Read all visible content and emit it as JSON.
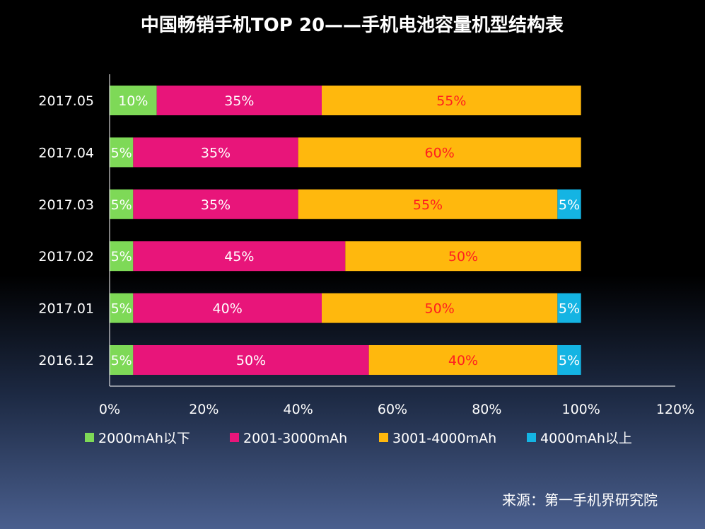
{
  "chart_data": {
    "type": "bar",
    "orientation": "horizontal",
    "stacked": true,
    "title": "中国畅销手机TOP 20——手机电池容量机型结构表",
    "categories": [
      "2017.05",
      "2017.04",
      "2017.03",
      "2017.02",
      "2017.01",
      "2016.12"
    ],
    "series": [
      {
        "name": "2000mAh以下",
        "color": "#7ed957",
        "label_color": "#ffffff",
        "values": [
          10,
          5,
          5,
          5,
          5,
          5
        ],
        "labels": [
          "10%",
          "5%",
          "5%",
          "5%",
          "5%",
          "5%"
        ]
      },
      {
        "name": "2001-3000mAh",
        "color": "#e8157a",
        "label_color": "#ffffff",
        "values": [
          35,
          35,
          35,
          45,
          40,
          50
        ],
        "labels": [
          "35%",
          "35%",
          "35%",
          "45%",
          "40%",
          "50%"
        ]
      },
      {
        "name": "3001-4000mAh",
        "color": "#ffb80d",
        "label_color": "#ff1f1f",
        "values": [
          55,
          60,
          55,
          50,
          50,
          40
        ],
        "labels": [
          "55%",
          "60%",
          "55%",
          "50%",
          "50%",
          "40%"
        ]
      },
      {
        "name": "4000mAh以上",
        "color": "#14b4e3",
        "label_color": "#ffffff",
        "values": [
          0,
          0,
          5,
          0,
          5,
          5
        ],
        "labels": [
          "",
          "",
          "5%",
          "",
          "5%",
          "5%"
        ]
      }
    ],
    "x_ticks": [
      "0%",
      "20%",
      "40%",
      "60%",
      "80%",
      "100%",
      "120%"
    ],
    "xlim": [
      0,
      120
    ],
    "legend_position": "bottom",
    "source": "来源：第一手机界研究院"
  }
}
